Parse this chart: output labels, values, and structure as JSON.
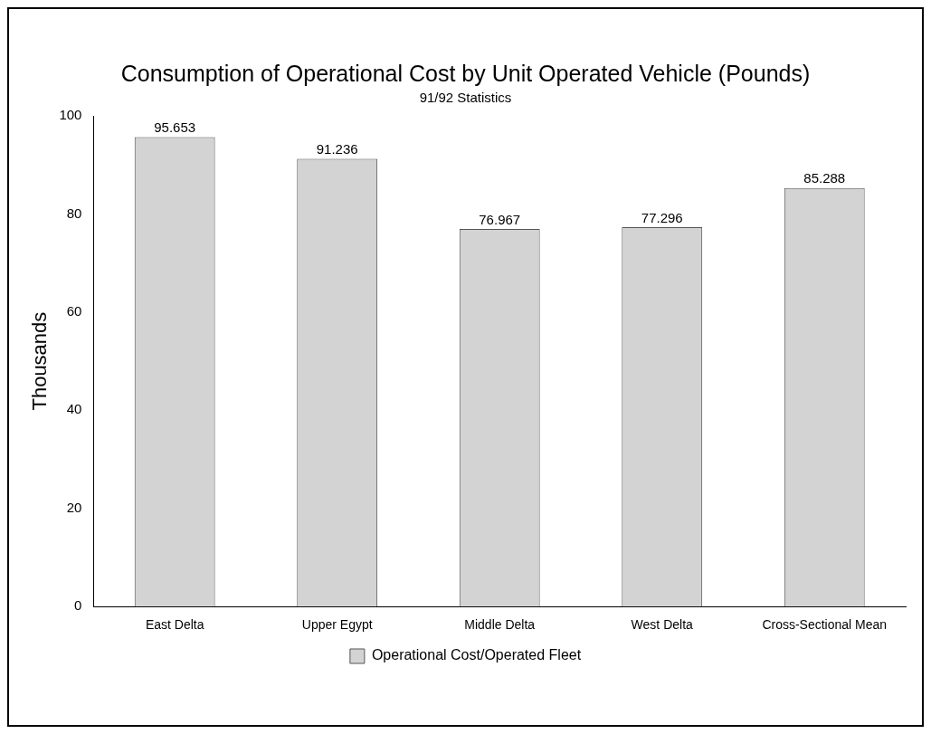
{
  "chart_data": {
    "type": "bar",
    "title": "Consumption of Operational Cost by Unit Operated Vehicle (Pounds)",
    "subtitle": "91/92 Statistics",
    "ylabel": "Thousands",
    "categories": [
      "East Delta",
      "Upper Egypt",
      "Middle Delta",
      "West Delta",
      "Cross-Sectional Mean"
    ],
    "series": [
      {
        "name": "Operational Cost/Operated Fleet",
        "color": "#d3d3d3",
        "values": [
          95.653,
          91.236,
          76.967,
          77.296,
          85.288
        ]
      }
    ],
    "ylim": [
      0,
      100
    ],
    "yticks": [
      0,
      20,
      40,
      60,
      80,
      100
    ],
    "grid": false,
    "legend": "bottom",
    "data_labels": true
  }
}
